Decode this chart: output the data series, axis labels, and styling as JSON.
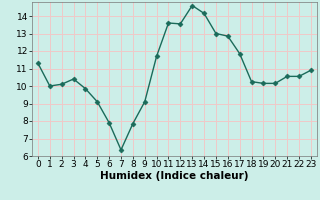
{
  "x": [
    0,
    1,
    2,
    3,
    4,
    5,
    6,
    7,
    8,
    9,
    10,
    11,
    12,
    13,
    14,
    15,
    16,
    17,
    18,
    19,
    20,
    21,
    22,
    23
  ],
  "y": [
    11.3,
    10.0,
    10.1,
    10.4,
    9.85,
    9.1,
    7.9,
    6.35,
    7.85,
    9.1,
    11.7,
    13.6,
    13.55,
    14.6,
    14.15,
    13.0,
    12.85,
    11.85,
    10.25,
    10.15,
    10.15,
    10.55,
    10.55,
    10.9
  ],
  "line_color": "#1a6b5a",
  "marker": "D",
  "marker_size": 2.5,
  "line_width": 1.0,
  "bg_color": "#cceee8",
  "grid_color": "#f0c8c8",
  "xlabel": "Humidex (Indice chaleur)",
  "xlim": [
    -0.5,
    23.5
  ],
  "ylim": [
    6,
    14.8
  ],
  "yticks": [
    6,
    7,
    8,
    9,
    10,
    11,
    12,
    13,
    14
  ],
  "xticks": [
    0,
    1,
    2,
    3,
    4,
    5,
    6,
    7,
    8,
    9,
    10,
    11,
    12,
    13,
    14,
    15,
    16,
    17,
    18,
    19,
    20,
    21,
    22,
    23
  ],
  "tick_label_fontsize": 6.5,
  "xlabel_fontsize": 7.5
}
